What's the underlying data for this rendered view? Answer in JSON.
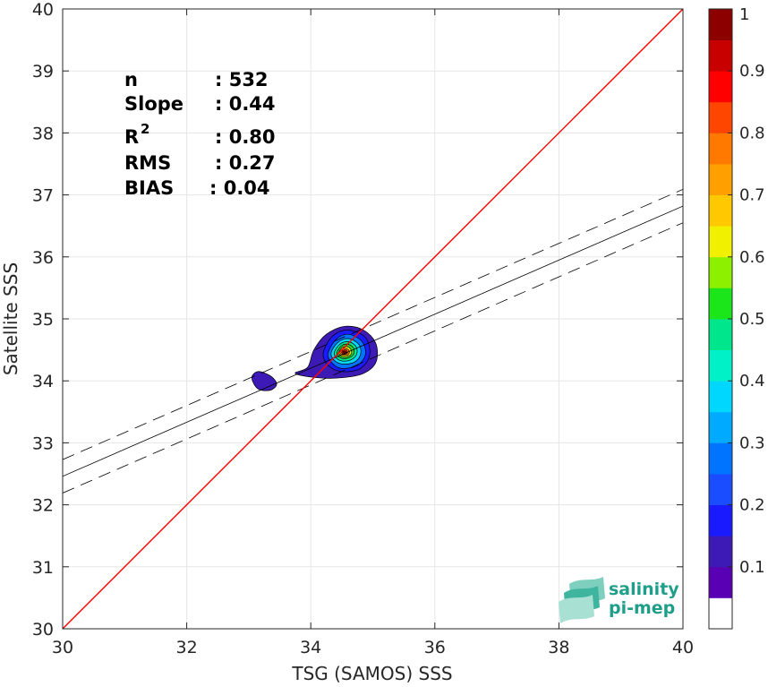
{
  "chart_data": {
    "type": "scatter",
    "xlabel": "TSG (SAMOS) SSS",
    "ylabel": "Satellite SSS",
    "xlim": [
      30,
      40
    ],
    "ylim": [
      30,
      40
    ],
    "xticks": [
      30,
      32,
      34,
      36,
      38,
      40
    ],
    "yticks": [
      30,
      31,
      32,
      33,
      34,
      35,
      36,
      37,
      38,
      39,
      40
    ],
    "grid": true,
    "stats": [
      {
        "label": "n",
        "value": ": 532"
      },
      {
        "label": "Slope",
        "value": ": 0.44"
      },
      {
        "label": "R",
        "sup": "2",
        "value": ": 0.80"
      },
      {
        "label": "RMS",
        "value": ": 0.27"
      },
      {
        "label": "BIAS",
        "value": ": 0.04"
      }
    ],
    "identity_line": {
      "x": [
        30,
        40
      ],
      "y": [
        30,
        40
      ],
      "color": "#ff0000"
    },
    "fit_line": {
      "x": [
        30,
        40
      ],
      "y": [
        32.46,
        36.82
      ],
      "color": "#000000"
    },
    "fit_bounds": [
      {
        "x": [
          30,
          40
        ],
        "y": [
          32.73,
          37.09
        ]
      },
      {
        "x": [
          30,
          40
        ],
        "y": [
          32.19,
          36.55
        ]
      }
    ],
    "density_contours": [
      {
        "level": 0.05,
        "color": "#3d1ab5",
        "points": [
          [
            33.05,
            34.05
          ],
          [
            33.15,
            34.15
          ],
          [
            33.35,
            34.08
          ],
          [
            33.45,
            33.95
          ],
          [
            33.35,
            33.85
          ],
          [
            33.15,
            33.87
          ]
        ]
      },
      {
        "level": 0.05,
        "color": "#3d1ab5",
        "points": [
          [
            33.75,
            34.12
          ],
          [
            33.95,
            34.22
          ],
          [
            34.05,
            34.5
          ],
          [
            34.25,
            34.75
          ],
          [
            34.55,
            34.88
          ],
          [
            34.85,
            34.82
          ],
          [
            35.05,
            34.6
          ],
          [
            35.05,
            34.3
          ],
          [
            34.85,
            34.12
          ],
          [
            34.5,
            34.05
          ],
          [
            34.1,
            34.05
          ]
        ]
      },
      {
        "level": 0.15,
        "color": "#1a1aff",
        "points": [
          [
            34.2,
            34.45
          ],
          [
            34.35,
            34.72
          ],
          [
            34.6,
            34.82
          ],
          [
            34.88,
            34.7
          ],
          [
            34.95,
            34.42
          ],
          [
            34.8,
            34.2
          ],
          [
            34.5,
            34.15
          ],
          [
            34.28,
            34.25
          ]
        ]
      },
      {
        "level": 0.25,
        "color": "#0073ff",
        "points": [
          [
            34.28,
            34.45
          ],
          [
            34.42,
            34.68
          ],
          [
            34.62,
            34.75
          ],
          [
            34.83,
            34.63
          ],
          [
            34.88,
            34.42
          ],
          [
            34.75,
            34.25
          ],
          [
            34.5,
            34.2
          ],
          [
            34.33,
            34.3
          ]
        ]
      },
      {
        "level": 0.35,
        "color": "#00d7ff",
        "points": [
          [
            34.33,
            34.46
          ],
          [
            34.45,
            34.63
          ],
          [
            34.62,
            34.68
          ],
          [
            34.78,
            34.58
          ],
          [
            34.8,
            34.42
          ],
          [
            34.7,
            34.3
          ],
          [
            34.52,
            34.27
          ],
          [
            34.38,
            34.33
          ]
        ]
      },
      {
        "level": 0.45,
        "color": "#00e68c",
        "points": [
          [
            34.38,
            34.46
          ],
          [
            34.48,
            34.6
          ],
          [
            34.62,
            34.63
          ],
          [
            34.73,
            34.55
          ],
          [
            34.74,
            34.43
          ],
          [
            34.65,
            34.34
          ],
          [
            34.52,
            34.32
          ],
          [
            34.42,
            34.36
          ]
        ]
      },
      {
        "level": 0.55,
        "color": "#2fd12f",
        "points": [
          [
            34.42,
            34.46
          ],
          [
            34.5,
            34.57
          ],
          [
            34.6,
            34.59
          ],
          [
            34.69,
            34.53
          ],
          [
            34.69,
            34.43
          ],
          [
            34.61,
            34.37
          ],
          [
            34.52,
            34.36
          ],
          [
            34.45,
            34.39
          ]
        ]
      },
      {
        "level": 0.65,
        "color": "#ffeb00",
        "points": [
          [
            34.45,
            34.46
          ],
          [
            34.51,
            34.54
          ],
          [
            34.59,
            34.55
          ],
          [
            34.65,
            34.5
          ],
          [
            34.65,
            34.43
          ],
          [
            34.58,
            34.39
          ],
          [
            34.51,
            34.39
          ],
          [
            34.47,
            34.42
          ]
        ]
      },
      {
        "level": 0.75,
        "color": "#ff8c00",
        "points": [
          [
            34.47,
            34.47
          ],
          [
            34.52,
            34.52
          ],
          [
            34.58,
            34.52
          ],
          [
            34.62,
            34.48
          ],
          [
            34.61,
            34.43
          ],
          [
            34.56,
            34.41
          ],
          [
            34.5,
            34.42
          ]
        ]
      },
      {
        "level": 0.9,
        "color": "#ff1a00",
        "points": [
          [
            34.5,
            34.47
          ],
          [
            34.54,
            34.5
          ],
          [
            34.58,
            34.49
          ],
          [
            34.59,
            34.45
          ],
          [
            34.55,
            34.43
          ],
          [
            34.51,
            34.44
          ]
        ]
      },
      {
        "level": 1.0,
        "color": "#8c0000",
        "points": [
          [
            34.52,
            34.47
          ],
          [
            34.55,
            34.48
          ],
          [
            34.57,
            34.46
          ],
          [
            34.55,
            34.45
          ],
          [
            34.53,
            34.45
          ]
        ]
      }
    ],
    "colorbar": {
      "range": [
        0,
        1
      ],
      "ticks": [
        "0.1",
        "0.2",
        "0.3",
        "0.4",
        "0.5",
        "0.6",
        "0.7",
        "0.8",
        "0.9",
        "1"
      ],
      "colors": [
        "#ffffff",
        "#5a00b4",
        "#3d1ab5",
        "#1a1aff",
        "#1a4dff",
        "#0073ff",
        "#00aaff",
        "#00d7ff",
        "#00f0c8",
        "#00e68c",
        "#1ae61a",
        "#8cf000",
        "#f0f000",
        "#ffc800",
        "#ffa000",
        "#ff7800",
        "#ff4600",
        "#ff0000",
        "#c80000",
        "#8c0000"
      ]
    }
  },
  "logo": {
    "line1": "salinity",
    "line2": "pi-mep"
  }
}
